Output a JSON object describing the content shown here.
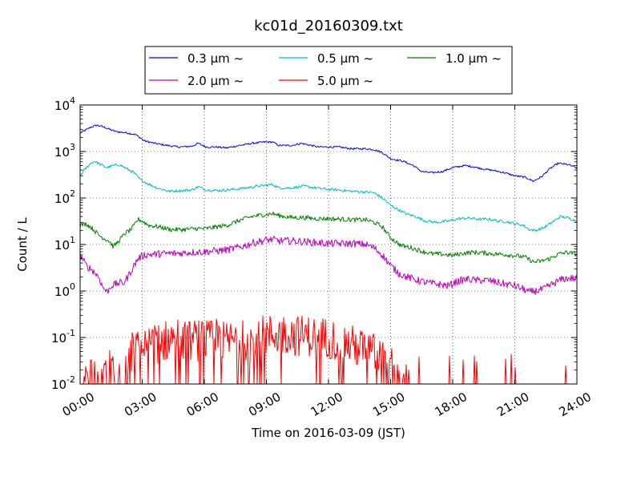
{
  "chart_data": {
    "type": "line",
    "title": "kc01d_20160309.txt",
    "xlabel": "Time on 2016-03-09 (JST)",
    "ylabel": "Count / L",
    "yscale": "log",
    "xlim": [
      0,
      24
    ],
    "ylim": [
      0.01,
      10000
    ],
    "grid": "dotted",
    "legend_position": "top-center",
    "x_ticks": [
      0,
      3,
      6,
      9,
      12,
      15,
      18,
      21,
      24
    ],
    "x_tick_labels": [
      "00:00",
      "03:00",
      "06:00",
      "09:00",
      "12:00",
      "15:00",
      "18:00",
      "21:00",
      "24:00"
    ],
    "y_ticks": [
      {
        "base": "10",
        "exp": "-2",
        "value": 0.01
      },
      {
        "base": "10",
        "exp": "-1",
        "value": 0.1
      },
      {
        "base": "10",
        "exp": "0",
        "value": 1
      },
      {
        "base": "10",
        "exp": "1",
        "value": 10
      },
      {
        "base": "10",
        "exp": "2",
        "value": 100
      },
      {
        "base": "10",
        "exp": "3",
        "value": 1000
      },
      {
        "base": "10",
        "exp": "4",
        "value": 10000
      }
    ],
    "series": [
      {
        "name": "0.3 μm ~",
        "color": "#0000ff",
        "noise": 0.02,
        "points": [
          [
            0,
            2500
          ],
          [
            0.5,
            3300
          ],
          [
            0.8,
            3700
          ],
          [
            1.2,
            3300
          ],
          [
            1.7,
            2700
          ],
          [
            2.3,
            2500
          ],
          [
            2.7,
            2300
          ],
          [
            3.1,
            1700
          ],
          [
            3.6,
            1500
          ],
          [
            4.2,
            1350
          ],
          [
            4.8,
            1250
          ],
          [
            5.4,
            1300
          ],
          [
            5.7,
            1500
          ],
          [
            6.1,
            1250
          ],
          [
            6.6,
            1250
          ],
          [
            7.1,
            1200
          ],
          [
            7.7,
            1350
          ],
          [
            8.3,
            1500
          ],
          [
            8.9,
            1600
          ],
          [
            9.3,
            1600
          ],
          [
            9.6,
            1350
          ],
          [
            10.2,
            1350
          ],
          [
            10.7,
            1500
          ],
          [
            11.0,
            1400
          ],
          [
            11.5,
            1250
          ],
          [
            12.0,
            1250
          ],
          [
            12.5,
            1250
          ],
          [
            13.1,
            1150
          ],
          [
            13.8,
            1150
          ],
          [
            14.2,
            1100
          ],
          [
            14.6,
            950
          ],
          [
            15.0,
            700
          ],
          [
            15.6,
            620
          ],
          [
            16.1,
            500
          ],
          [
            16.5,
            370
          ],
          [
            17.0,
            350
          ],
          [
            17.5,
            370
          ],
          [
            18.0,
            450
          ],
          [
            18.6,
            500
          ],
          [
            19.0,
            470
          ],
          [
            19.5,
            420
          ],
          [
            20.0,
            390
          ],
          [
            20.5,
            350
          ],
          [
            21.0,
            300
          ],
          [
            21.5,
            280
          ],
          [
            21.9,
            230
          ],
          [
            22.3,
            290
          ],
          [
            22.7,
            430
          ],
          [
            23.1,
            560
          ],
          [
            23.6,
            520
          ],
          [
            24.0,
            440
          ]
        ]
      },
      {
        "name": "0.5 μm ~",
        "color": "#00bfbf",
        "noise": 0.03,
        "points": [
          [
            0,
            300
          ],
          [
            0.2,
            400
          ],
          [
            0.5,
            550
          ],
          [
            0.7,
            620
          ],
          [
            1.0,
            520
          ],
          [
            1.3,
            450
          ],
          [
            1.6,
            500
          ],
          [
            1.9,
            520
          ],
          [
            2.2,
            440
          ],
          [
            2.6,
            350
          ],
          [
            2.9,
            250
          ],
          [
            3.3,
            200
          ],
          [
            3.8,
            160
          ],
          [
            4.3,
            140
          ],
          [
            5.0,
            145
          ],
          [
            5.4,
            150
          ],
          [
            5.7,
            175
          ],
          [
            6.1,
            150
          ],
          [
            6.6,
            145
          ],
          [
            7.2,
            150
          ],
          [
            7.8,
            160
          ],
          [
            8.4,
            175
          ],
          [
            9.0,
            190
          ],
          [
            9.3,
            195
          ],
          [
            9.6,
            165
          ],
          [
            10.2,
            165
          ],
          [
            10.8,
            180
          ],
          [
            11.2,
            170
          ],
          [
            11.8,
            155
          ],
          [
            12.4,
            150
          ],
          [
            13.1,
            140
          ],
          [
            13.8,
            135
          ],
          [
            14.2,
            130
          ],
          [
            14.6,
            100
          ],
          [
            15.0,
            70
          ],
          [
            15.4,
            55
          ],
          [
            15.8,
            45
          ],
          [
            16.2,
            40
          ],
          [
            16.7,
            32
          ],
          [
            17.2,
            30
          ],
          [
            17.8,
            32
          ],
          [
            18.3,
            36
          ],
          [
            18.8,
            37
          ],
          [
            19.3,
            35
          ],
          [
            19.8,
            35
          ],
          [
            20.2,
            32
          ],
          [
            20.6,
            31
          ],
          [
            21.0,
            28
          ],
          [
            21.4,
            26
          ],
          [
            21.7,
            21
          ],
          [
            22.0,
            20
          ],
          [
            22.4,
            23
          ],
          [
            22.8,
            30
          ],
          [
            23.2,
            40
          ],
          [
            23.6,
            37
          ],
          [
            24.0,
            32
          ]
        ]
      },
      {
        "name": "1.0 μm ~",
        "color": "#008000",
        "noise": 0.05,
        "points": [
          [
            0,
            26
          ],
          [
            0.3,
            28
          ],
          [
            0.6,
            22
          ],
          [
            0.9,
            16
          ],
          [
            1.1,
            14
          ],
          [
            1.4,
            12
          ],
          [
            1.6,
            9
          ],
          [
            1.8,
            11
          ],
          [
            2.0,
            14
          ],
          [
            2.2,
            18
          ],
          [
            2.4,
            20
          ],
          [
            2.6,
            25
          ],
          [
            2.8,
            35
          ],
          [
            3.0,
            32
          ],
          [
            3.3,
            26
          ],
          [
            3.8,
            24
          ],
          [
            4.4,
            21
          ],
          [
            5.0,
            21
          ],
          [
            5.6,
            22
          ],
          [
            6.1,
            22
          ],
          [
            6.6,
            24
          ],
          [
            7.1,
            26
          ],
          [
            7.7,
            33
          ],
          [
            8.3,
            40
          ],
          [
            8.9,
            44
          ],
          [
            9.3,
            46
          ],
          [
            9.6,
            42
          ],
          [
            10.2,
            38
          ],
          [
            10.8,
            38
          ],
          [
            11.4,
            36
          ],
          [
            12.0,
            36
          ],
          [
            12.6,
            35
          ],
          [
            13.2,
            34
          ],
          [
            13.8,
            34
          ],
          [
            14.2,
            30
          ],
          [
            14.6,
            24
          ],
          [
            15.0,
            14
          ],
          [
            15.5,
            9.5
          ],
          [
            16.0,
            8.5
          ],
          [
            16.5,
            7.2
          ],
          [
            17.0,
            6.3
          ],
          [
            17.5,
            6.2
          ],
          [
            18.0,
            5.8
          ],
          [
            18.5,
            6.5
          ],
          [
            19.0,
            6.8
          ],
          [
            19.5,
            6.6
          ],
          [
            20.0,
            6.3
          ],
          [
            20.5,
            6.1
          ],
          [
            21.0,
            5.8
          ],
          [
            21.5,
            5.3
          ],
          [
            21.9,
            4.2
          ],
          [
            22.3,
            4.4
          ],
          [
            22.7,
            5.0
          ],
          [
            23.1,
            6.2
          ],
          [
            23.5,
            6.8
          ],
          [
            24.0,
            6.2
          ]
        ]
      },
      {
        "name": "2.0 μm ~",
        "color": "#bf00bf",
        "noise": 0.08,
        "points": [
          [
            0,
            6
          ],
          [
            0.3,
            3.5
          ],
          [
            0.6,
            2.8
          ],
          [
            0.9,
            2.0
          ],
          [
            1.1,
            1.2
          ],
          [
            1.3,
            0.95
          ],
          [
            1.5,
            1.3
          ],
          [
            1.7,
            1.4
          ],
          [
            1.9,
            1.5
          ],
          [
            2.1,
            1.5
          ],
          [
            2.3,
            2.0
          ],
          [
            2.6,
            3.5
          ],
          [
            2.8,
            5.0
          ],
          [
            3.1,
            6.0
          ],
          [
            3.6,
            6.2
          ],
          [
            4.2,
            6.4
          ],
          [
            4.8,
            6.5
          ],
          [
            5.4,
            6.8
          ],
          [
            6.0,
            7.0
          ],
          [
            6.6,
            7.3
          ],
          [
            7.2,
            7.8
          ],
          [
            7.8,
            9.0
          ],
          [
            8.4,
            11
          ],
          [
            9.0,
            12.5
          ],
          [
            9.3,
            12.8
          ],
          [
            9.6,
            12
          ],
          [
            10.2,
            12
          ],
          [
            10.8,
            11.5
          ],
          [
            11.4,
            11
          ],
          [
            12.0,
            10.5
          ],
          [
            12.6,
            10.5
          ],
          [
            13.2,
            10.5
          ],
          [
            13.8,
            10
          ],
          [
            14.2,
            8.5
          ],
          [
            14.6,
            6
          ],
          [
            15.0,
            3.5
          ],
          [
            15.4,
            2.4
          ],
          [
            15.8,
            2.0
          ],
          [
            16.3,
            1.7
          ],
          [
            16.8,
            1.5
          ],
          [
            17.3,
            1.4
          ],
          [
            17.8,
            1.3
          ],
          [
            18.2,
            1.6
          ],
          [
            18.7,
            1.8
          ],
          [
            19.2,
            1.7
          ],
          [
            19.7,
            1.7
          ],
          [
            20.2,
            1.5
          ],
          [
            20.6,
            1.4
          ],
          [
            21.0,
            1.3
          ],
          [
            21.4,
            1.1
          ],
          [
            21.7,
            0.95
          ],
          [
            22.0,
            1.0
          ],
          [
            22.4,
            1.1
          ],
          [
            22.8,
            1.4
          ],
          [
            23.3,
            1.8
          ],
          [
            23.7,
            1.9
          ],
          [
            24.0,
            1.8
          ]
        ]
      },
      {
        "name": "5.0 μm ~",
        "color": "#ff0000",
        "noise": 0,
        "points": [
          [
            0,
            0.01
          ],
          [
            0.5,
            0.02
          ],
          [
            1.0,
            0.01
          ],
          [
            1.5,
            0.03
          ],
          [
            2.0,
            0.01
          ],
          [
            2.5,
            0.05
          ],
          [
            3.0,
            0.06
          ],
          [
            3.5,
            0.07
          ],
          [
            4.0,
            0.08
          ],
          [
            4.5,
            0.1
          ],
          [
            5.0,
            0.08
          ],
          [
            5.5,
            0.09
          ],
          [
            6.0,
            0.08
          ],
          [
            6.5,
            0.09
          ],
          [
            7.0,
            0.08
          ],
          [
            7.5,
            0.09
          ],
          [
            8.0,
            0.09
          ],
          [
            8.5,
            0.1
          ],
          [
            9.0,
            0.11
          ],
          [
            9.5,
            0.12
          ],
          [
            10.0,
            0.12
          ],
          [
            10.5,
            0.11
          ],
          [
            11.0,
            0.11
          ],
          [
            11.5,
            0.1
          ],
          [
            12.0,
            0.1
          ],
          [
            12.5,
            0.08
          ],
          [
            13.0,
            0.07
          ],
          [
            13.5,
            0.06
          ],
          [
            14.0,
            0.05
          ],
          [
            14.5,
            0.04
          ],
          [
            15.0,
            0.03
          ],
          [
            15.5,
            0.015
          ],
          [
            16.0,
            0.01
          ],
          [
            24.0,
            0.01
          ]
        ]
      }
    ]
  }
}
